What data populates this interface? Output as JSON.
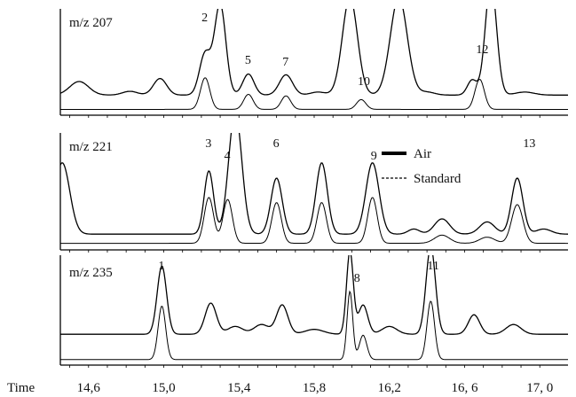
{
  "chart_data": {
    "type": "line",
    "x_axis": {
      "label": "Time",
      "range": [
        14.45,
        17.15
      ],
      "ticks": [
        "14,6",
        "15,0",
        "15,4",
        "15,8",
        "16,2",
        "16, 6",
        "17, 0"
      ],
      "tick_values": [
        14.6,
        15.0,
        15.4,
        15.8,
        16.2,
        16.6,
        17.0
      ]
    },
    "legend": {
      "position": "upper-right of middle panel",
      "entries": [
        {
          "label": "Air",
          "style": "solid thick"
        },
        {
          "label": "Standard",
          "style": "dashed"
        }
      ]
    },
    "panels": [
      {
        "title": "m/z 207",
        "peak_labels": [
          {
            "text": "2",
            "x": 15.22
          },
          {
            "text": "5",
            "x": 15.45
          },
          {
            "text": "7",
            "x": 15.65
          },
          {
            "text": "10",
            "x": 16.05
          },
          {
            "text": "12",
            "x": 16.68
          }
        ],
        "series": [
          {
            "name": "Air",
            "baseline": 0.22,
            "peaks": [
              [
                14.55,
                0.18,
                0.05
              ],
              [
                14.82,
                0.05,
                0.04
              ],
              [
                14.98,
                0.22,
                0.035
              ],
              [
                15.22,
                0.55,
                0.03
              ],
              [
                15.3,
                1.2,
                0.03
              ],
              [
                15.45,
                0.28,
                0.03
              ],
              [
                15.65,
                0.27,
                0.035
              ],
              [
                15.82,
                0.04,
                0.04
              ],
              [
                15.99,
                1.3,
                0.04
              ],
              [
                16.25,
                1.3,
                0.045
              ],
              [
                16.4,
                0.04,
                0.04
              ],
              [
                16.64,
                0.2,
                0.025
              ],
              [
                16.74,
                1.5,
                0.03
              ],
              [
                16.92,
                0.04,
                0.05
              ]
            ]
          },
          {
            "name": "Standard",
            "baseline": 0.03,
            "peaks": [
              [
                15.22,
                0.42,
                0.025
              ],
              [
                15.45,
                0.2,
                0.025
              ],
              [
                15.65,
                0.18,
                0.025
              ],
              [
                16.05,
                0.13,
                0.025
              ],
              [
                16.68,
                0.4,
                0.025
              ]
            ]
          }
        ]
      },
      {
        "title": "m/z 221",
        "peak_labels": [
          {
            "text": "3",
            "x": 15.24
          },
          {
            "text": "4",
            "x": 15.34
          },
          {
            "text": "6",
            "x": 15.6
          },
          {
            "text": "9",
            "x": 16.12
          },
          {
            "text": "13",
            "x": 16.93
          }
        ],
        "series": [
          {
            "name": "Air",
            "baseline": 0.12,
            "peaks": [
              [
                14.46,
                0.7,
                0.04
              ],
              [
                15.24,
                0.62,
                0.025
              ],
              [
                15.38,
                1.2,
                0.035
              ],
              [
                15.6,
                0.55,
                0.03
              ],
              [
                15.84,
                0.7,
                0.03
              ],
              [
                16.11,
                0.7,
                0.035
              ],
              [
                16.33,
                0.05,
                0.03
              ],
              [
                16.48,
                0.15,
                0.04
              ],
              [
                16.72,
                0.12,
                0.04
              ],
              [
                16.88,
                0.55,
                0.03
              ],
              [
                17.02,
                0.05,
                0.04
              ]
            ]
          },
          {
            "name": "Standard",
            "baseline": 0.03,
            "peaks": [
              [
                15.24,
                0.45,
                0.025
              ],
              [
                15.34,
                0.43,
                0.025
              ],
              [
                15.6,
                0.4,
                0.025
              ],
              [
                15.84,
                0.4,
                0.025
              ],
              [
                16.11,
                0.45,
                0.025
              ],
              [
                16.48,
                0.08,
                0.04
              ],
              [
                16.72,
                0.06,
                0.04
              ],
              [
                16.88,
                0.38,
                0.03
              ]
            ]
          }
        ]
      },
      {
        "title": "m/z 235",
        "peak_labels": [
          {
            "text": "1",
            "x": 14.99
          },
          {
            "text": "8",
            "x": 16.03
          },
          {
            "text": "11",
            "x": 16.42
          }
        ],
        "series": [
          {
            "name": "Air",
            "baseline": 0.28,
            "peaks": [
              [
                14.99,
                0.7,
                0.025
              ],
              [
                15.25,
                0.32,
                0.03
              ],
              [
                15.38,
                0.08,
                0.04
              ],
              [
                15.52,
                0.1,
                0.04
              ],
              [
                15.63,
                0.3,
                0.03
              ],
              [
                15.8,
                0.05,
                0.05
              ],
              [
                15.99,
                0.85,
                0.018
              ],
              [
                16.06,
                0.3,
                0.025
              ],
              [
                16.2,
                0.08,
                0.04
              ],
              [
                16.42,
                0.9,
                0.025
              ],
              [
                16.65,
                0.2,
                0.03
              ],
              [
                16.86,
                0.1,
                0.04
              ]
            ]
          },
          {
            "name": "Standard",
            "baseline": 0.02,
            "peaks": [
              [
                14.99,
                0.55,
                0.02
              ],
              [
                15.99,
                0.7,
                0.015
              ],
              [
                16.06,
                0.25,
                0.02
              ],
              [
                16.42,
                0.6,
                0.02
              ]
            ]
          }
        ]
      }
    ]
  }
}
